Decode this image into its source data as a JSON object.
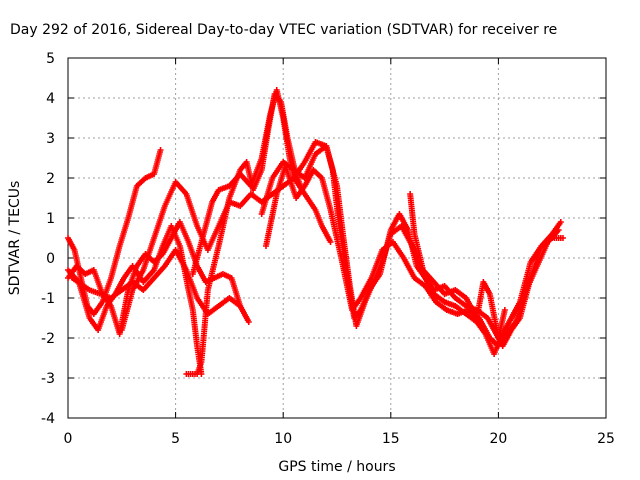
{
  "chart_data": {
    "type": "scatter",
    "title": "Day 292 of 2016, Sidereal Day-to-day VTEC variation (SDTVAR) for receiver re",
    "xlabel": "GPS time / hours",
    "ylabel": "SDTVAR / TECUs",
    "xlim": [
      0,
      25
    ],
    "ylim": [
      -4,
      5
    ],
    "xticks": [
      0,
      5,
      10,
      15,
      20,
      25
    ],
    "yticks": [
      -4,
      -3,
      -2,
      -1,
      0,
      1,
      2,
      3,
      4,
      5
    ],
    "grid": true,
    "marker": "+",
    "color": "#ff0000",
    "series": [
      {
        "points": [
          [
            0,
            -0.5
          ],
          [
            0.4,
            -0.2
          ],
          [
            0.8,
            -0.4
          ],
          [
            1.2,
            -0.3
          ],
          [
            1.6,
            -0.9
          ],
          [
            2.0,
            -1.2
          ],
          [
            2.4,
            -1.9
          ],
          [
            2.8,
            -0.8
          ],
          [
            3.2,
            -0.2
          ],
          [
            3.6,
            0.1
          ],
          [
            4.0,
            -0.1
          ],
          [
            4.4,
            0.1
          ],
          [
            4.8,
            0.5
          ],
          [
            5.2,
            0.9
          ],
          [
            5.6,
            0.4
          ],
          [
            6.0,
            -0.2
          ],
          [
            6.4,
            -0.6
          ],
          [
            6.8,
            -0.5
          ],
          [
            7.2,
            -0.4
          ],
          [
            7.6,
            -0.5
          ],
          [
            8.0,
            -1.2
          ],
          [
            8.4,
            -1.6
          ]
        ]
      },
      {
        "points": [
          [
            0,
            0.5
          ],
          [
            0.3,
            0.2
          ],
          [
            0.6,
            -0.5
          ],
          [
            0.9,
            -1.2
          ],
          [
            1.2,
            -1.4
          ],
          [
            1.6,
            -1.1
          ],
          [
            2.0,
            -0.5
          ],
          [
            2.4,
            0.3
          ],
          [
            2.8,
            1.0
          ],
          [
            3.2,
            1.8
          ],
          [
            3.6,
            2.0
          ],
          [
            4.0,
            2.1
          ],
          [
            4.3,
            2.7
          ]
        ]
      },
      {
        "points": [
          [
            0,
            -0.3
          ],
          [
            0.5,
            -0.6
          ],
          [
            1.0,
            -1.5
          ],
          [
            1.4,
            -1.8
          ],
          [
            1.8,
            -1.2
          ],
          [
            2.2,
            -0.9
          ],
          [
            2.6,
            -0.5
          ],
          [
            3.0,
            -0.2
          ],
          [
            3.5,
            -0.6
          ],
          [
            4.0,
            -0.3
          ],
          [
            4.4,
            0.3
          ],
          [
            4.8,
            0.8
          ],
          [
            5.2,
            0.3
          ],
          [
            5.6,
            -0.8
          ],
          [
            5.8,
            -1.3
          ],
          [
            6.0,
            -2.2
          ],
          [
            6.2,
            -2.9
          ]
        ]
      },
      {
        "points": [
          [
            0.2,
            -0.5
          ],
          [
            1.0,
            -0.8
          ],
          [
            2.0,
            -1.0
          ],
          [
            2.5,
            -0.8
          ],
          [
            3.0,
            -0.6
          ],
          [
            3.5,
            -0.8
          ],
          [
            4.0,
            -0.5
          ],
          [
            4.5,
            -0.2
          ],
          [
            5.0,
            0.2
          ],
          [
            5.5,
            -0.3
          ],
          [
            6.0,
            -1.0
          ],
          [
            6.5,
            -1.4
          ],
          [
            7.0,
            -1.2
          ],
          [
            7.5,
            -1.0
          ],
          [
            8.0,
            -1.2
          ]
        ]
      },
      {
        "points": [
          [
            2.5,
            -1.8
          ],
          [
            3.0,
            -0.8
          ],
          [
            3.5,
            -0.3
          ],
          [
            4.0,
            0.5
          ],
          [
            4.5,
            1.3
          ],
          [
            5.0,
            1.9
          ],
          [
            5.5,
            1.6
          ],
          [
            6.0,
            0.8
          ],
          [
            6.5,
            0.2
          ],
          [
            7.0,
            0.8
          ],
          [
            7.5,
            1.4
          ],
          [
            8.0,
            1.3
          ],
          [
            8.5,
            1.6
          ],
          [
            9.0,
            1.4
          ],
          [
            9.5,
            1.6
          ],
          [
            10.0,
            1.8
          ],
          [
            10.5,
            2.0
          ],
          [
            11.0,
            1.6
          ],
          [
            11.5,
            1.2
          ],
          [
            11.8,
            0.8
          ],
          [
            12.2,
            0.4
          ]
        ]
      },
      {
        "points": [
          [
            5.5,
            -2.9
          ],
          [
            6.0,
            -2.9
          ],
          [
            6.2,
            -2.6
          ],
          [
            6.5,
            -0.8
          ],
          [
            7.0,
            0.3
          ],
          [
            7.5,
            1.5
          ],
          [
            8.0,
            2.2
          ],
          [
            8.3,
            2.4
          ],
          [
            8.6,
            1.7
          ],
          [
            9.0,
            2.2
          ],
          [
            9.3,
            3.2
          ],
          [
            9.6,
            4.1
          ],
          [
            9.9,
            3.9
          ],
          [
            10.2,
            3.0
          ],
          [
            10.5,
            2.3
          ],
          [
            10.8,
            1.8
          ]
        ]
      },
      {
        "points": [
          [
            5.8,
            -0.4
          ],
          [
            6.3,
            0.6
          ],
          [
            6.7,
            1.4
          ],
          [
            7.0,
            1.7
          ],
          [
            7.5,
            1.8
          ],
          [
            8.0,
            2.1
          ],
          [
            8.5,
            1.8
          ],
          [
            9.0,
            2.5
          ],
          [
            9.4,
            3.6
          ],
          [
            9.7,
            4.2
          ],
          [
            10.0,
            3.5
          ],
          [
            10.3,
            2.5
          ],
          [
            10.5,
            2.0
          ],
          [
            11.0,
            2.4
          ],
          [
            11.5,
            2.9
          ],
          [
            12.0,
            2.8
          ],
          [
            12.3,
            2.2
          ],
          [
            12.6,
            0.8
          ],
          [
            13.0,
            -0.5
          ],
          [
            13.3,
            -1.5
          ],
          [
            13.6,
            -1.3
          ],
          [
            14.0,
            -0.8
          ],
          [
            14.5,
            -0.4
          ],
          [
            15.0,
            0.7
          ],
          [
            15.4,
            1.1
          ],
          [
            15.8,
            0.7
          ],
          [
            16.2,
            -0.2
          ],
          [
            16.6,
            -0.5
          ],
          [
            17.0,
            -0.8
          ],
          [
            17.5,
            -0.7
          ],
          [
            18.0,
            -1.0
          ],
          [
            18.5,
            -1.2
          ],
          [
            19.0,
            -1.3
          ],
          [
            19.5,
            -1.5
          ],
          [
            19.8,
            -1.8
          ],
          [
            20.2,
            -2.2
          ],
          [
            20.6,
            -1.8
          ],
          [
            21.0,
            -1.5
          ],
          [
            21.5,
            -0.5
          ],
          [
            22.0,
            0.3
          ],
          [
            22.5,
            0.6
          ],
          [
            22.9,
            0.9
          ]
        ]
      },
      {
        "points": [
          [
            9.0,
            1.1
          ],
          [
            9.5,
            2.0
          ],
          [
            10.0,
            2.4
          ],
          [
            10.5,
            2.2
          ],
          [
            11.0,
            2.0
          ],
          [
            11.5,
            2.6
          ],
          [
            12.0,
            2.8
          ],
          [
            12.5,
            1.8
          ],
          [
            12.8,
            0.5
          ],
          [
            13.1,
            -0.7
          ],
          [
            13.4,
            -1.7
          ],
          [
            13.8,
            -1.1
          ],
          [
            14.2,
            -0.6
          ],
          [
            14.6,
            -0.1
          ],
          [
            15.0,
            0.6
          ],
          [
            15.5,
            0.8
          ],
          [
            16.0,
            0.3
          ],
          [
            16.5,
            -0.4
          ],
          [
            17.0,
            -0.9
          ],
          [
            17.5,
            -1.1
          ],
          [
            18.0,
            -1.2
          ],
          [
            18.5,
            -1.4
          ],
          [
            19.0,
            -1.6
          ],
          [
            19.4,
            -1.9
          ],
          [
            19.8,
            -2.4
          ],
          [
            20.1,
            -2.0
          ],
          [
            20.5,
            -1.6
          ],
          [
            21.0,
            -1.1
          ],
          [
            21.5,
            -0.1
          ],
          [
            22.0,
            0.3
          ],
          [
            22.5,
            0.5
          ],
          [
            23.0,
            0.5
          ]
        ]
      },
      {
        "points": [
          [
            9.2,
            0.3
          ],
          [
            9.7,
            1.6
          ],
          [
            10.1,
            2.3
          ],
          [
            10.6,
            1.5
          ],
          [
            11.0,
            1.8
          ],
          [
            11.4,
            2.2
          ],
          [
            11.8,
            2.0
          ],
          [
            12.2,
            1.2
          ],
          [
            12.7,
            0.0
          ],
          [
            13.2,
            -1.3
          ],
          [
            13.6,
            -1.0
          ],
          [
            14.1,
            -0.5
          ],
          [
            14.6,
            0.2
          ],
          [
            15.1,
            0.4
          ],
          [
            15.6,
            0.0
          ],
          [
            16.1,
            -0.5
          ],
          [
            16.6,
            -0.7
          ],
          [
            17.1,
            -1.1
          ],
          [
            17.6,
            -1.3
          ],
          [
            18.1,
            -1.4
          ],
          [
            18.6,
            -1.3
          ],
          [
            19.1,
            -1.5
          ],
          [
            19.6,
            -2.0
          ],
          [
            20.0,
            -2.2
          ],
          [
            20.4,
            -1.9
          ],
          [
            20.8,
            -1.6
          ],
          [
            21.3,
            -0.8
          ],
          [
            21.8,
            -0.2
          ],
          [
            22.3,
            0.4
          ],
          [
            22.8,
            0.7
          ]
        ]
      },
      {
        "points": [
          [
            15.9,
            1.6
          ],
          [
            16.1,
            0.6
          ],
          [
            16.5,
            -0.3
          ],
          [
            17.0,
            -0.6
          ],
          [
            17.5,
            -0.9
          ],
          [
            18.0,
            -0.8
          ],
          [
            18.5,
            -1.0
          ],
          [
            19.0,
            -1.5
          ],
          [
            19.3,
            -0.6
          ],
          [
            19.6,
            -0.9
          ],
          [
            20.0,
            -2.0
          ],
          [
            20.3,
            -1.3
          ]
        ]
      }
    ]
  }
}
